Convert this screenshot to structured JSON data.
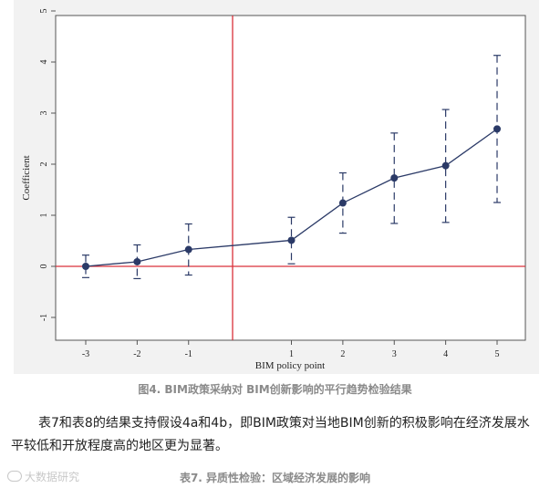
{
  "chart_data": {
    "type": "line",
    "xlabel": "BIM policy point",
    "ylabel": "Coefficient",
    "x": [
      -3,
      -2,
      -1,
      1,
      2,
      3,
      4,
      5
    ],
    "x_tick_labels": [
      "-3",
      "-2",
      "-1",
      "1",
      "2",
      "3",
      "4",
      "5"
    ],
    "y_ticks": [
      -1,
      0,
      1,
      2,
      3,
      4,
      5
    ],
    "y_tick_labels": [
      "-1",
      "0",
      "1",
      "2",
      "3",
      "4",
      "5"
    ],
    "ylim": [
      -1.1,
      5.2
    ],
    "series": [
      {
        "values": [
          0.0,
          0.09,
          0.33,
          0.51,
          1.24,
          1.73,
          1.97,
          2.69
        ],
        "ci_lower": [
          -0.22,
          -0.24,
          -0.17,
          0.05,
          0.65,
          0.84,
          0.86,
          1.25
        ],
        "ci_upper": [
          0.22,
          0.42,
          0.83,
          0.96,
          1.83,
          2.61,
          3.07,
          4.13
        ]
      }
    ],
    "reference_lines": {
      "vertical_x": -0.5,
      "horizontal_y": 0
    },
    "grid": false,
    "colors": {
      "series": "#2b3a67",
      "reference": "#d9303a"
    }
  },
  "figure_caption": "图4. BIM政策采纳对 BIM创新影响的平行趋势检验结果",
  "paragraph": "表7和表8的结果支持假设4a和4b，即BIM政策对当地BIM创新的积极影响在经济发展水平较低和开放程度高的地区更为显著。",
  "table_caption": "表7. 异质性检验：区域经济发展的影响",
  "watermark": "大数据研究"
}
